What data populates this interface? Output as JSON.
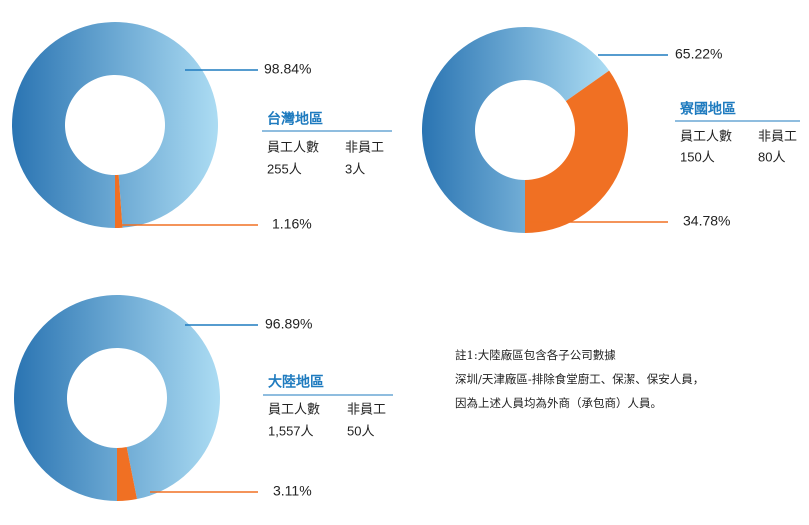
{
  "chart_data": [
    {
      "type": "pie",
      "title": "台灣地區",
      "categories": [
        "員工人數",
        "非員工"
      ],
      "values": [
        98.84,
        1.16
      ],
      "value_labels": [
        "98.84%",
        "1.16%"
      ],
      "counts": [
        "255人",
        "3人"
      ],
      "colors": [
        "#5b9bd5",
        "#f07023"
      ]
    },
    {
      "type": "pie",
      "title": "寮國地區",
      "categories": [
        "員工人數",
        "非員工"
      ],
      "values": [
        65.22,
        34.78
      ],
      "value_labels": [
        "65.22%",
        "34.78%"
      ],
      "counts": [
        "150人",
        "80人"
      ],
      "colors": [
        "#5b9bd5",
        "#f07023"
      ]
    },
    {
      "type": "pie",
      "title": "大陸地區",
      "categories": [
        "員工人數",
        "非員工"
      ],
      "values": [
        96.89,
        3.11
      ],
      "value_labels": [
        "96.89%",
        "3.11%"
      ],
      "counts": [
        "1,557人",
        "50人"
      ],
      "colors": [
        "#5b9bd5",
        "#f07023"
      ]
    }
  ],
  "note": [
    "註1:大陸廠區包含各子公司數據",
    "深圳/天津廠區-排除食堂廚工、保潔、保安人員，",
    "因為上述人員均為外商（承包商）人員。"
  ]
}
